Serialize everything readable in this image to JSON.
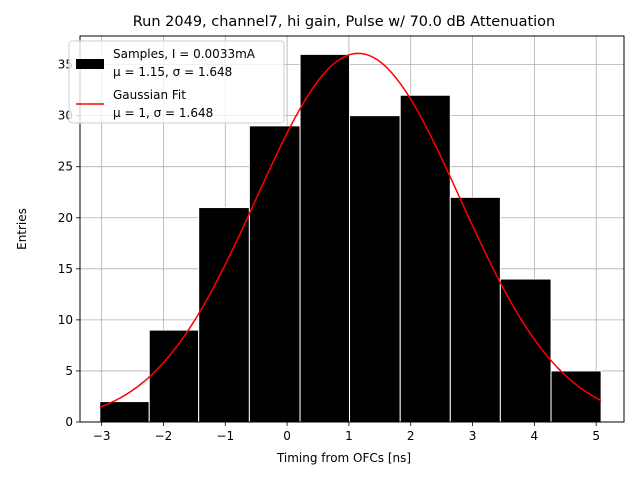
{
  "chart_data": {
    "type": "bar",
    "title": "Run 2049, channel7, hi gain, Pulse w/ 70.0 dB Attenuation",
    "xlabel": "Timing from OFCs [ns]",
    "ylabel": "Entries",
    "xlim": [
      -3.35,
      5.45
    ],
    "ylim": [
      0,
      37.8
    ],
    "grid": true,
    "legend_position": "top-left",
    "xticks": [
      -3,
      -2,
      -1,
      0,
      1,
      2,
      3,
      4,
      5
    ],
    "xtick_labels": [
      "−3",
      "−2",
      "−1",
      "0",
      "1",
      "2",
      "3",
      "4",
      "5"
    ],
    "yticks": [
      0,
      5,
      10,
      15,
      20,
      25,
      30,
      35
    ],
    "ytick_labels": [
      "0",
      "5",
      "10",
      "15",
      "20",
      "25",
      "30",
      "35"
    ],
    "bins": [
      {
        "x0": -3.03,
        "x1": -2.23,
        "value": 2
      },
      {
        "x0": -2.23,
        "x1": -1.43,
        "value": 9
      },
      {
        "x0": -1.43,
        "x1": -0.61,
        "value": 21
      },
      {
        "x0": -0.61,
        "x1": 0.21,
        "value": 29
      },
      {
        "x0": 0.21,
        "x1": 1.01,
        "value": 36
      },
      {
        "x0": 1.01,
        "x1": 1.83,
        "value": 30
      },
      {
        "x0": 1.83,
        "x1": 2.64,
        "value": 32
      },
      {
        "x0": 2.64,
        "x1": 3.45,
        "value": 22
      },
      {
        "x0": 3.45,
        "x1": 4.27,
        "value": 14
      },
      {
        "x0": 4.27,
        "x1": 5.08,
        "value": 5
      }
    ],
    "fit": {
      "amplitude": 36.1,
      "mu": 1.15,
      "sigma": 1.648,
      "x_range": [
        -3.03,
        5.08
      ],
      "color": "#ff0000"
    },
    "bar_color": "#000000",
    "bar_edge_color": "#ffffff",
    "legend": [
      {
        "line1": "Samples, I = 0.0033mA",
        "line2": "μ = 1.15, σ = 1.648",
        "symbol": "patch"
      },
      {
        "line1": "Gaussian Fit",
        "line2": "μ = 1, σ = 1.648",
        "symbol": "line"
      }
    ]
  }
}
